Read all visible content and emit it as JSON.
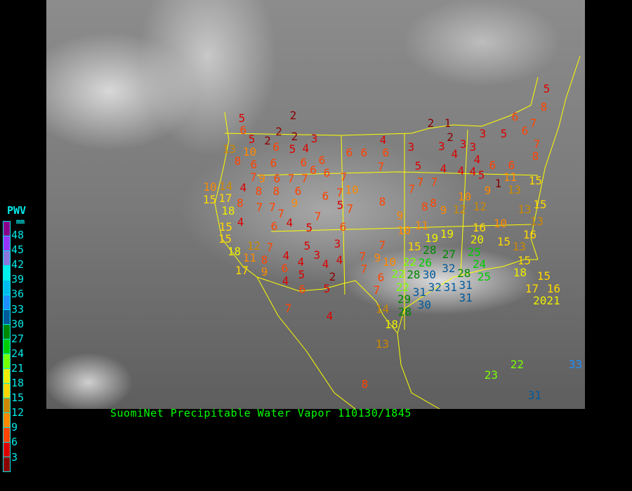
{
  "title": "SuomiNet Precipitable Water Vapor 110130/1845",
  "legend": {
    "title": "PWV",
    "unit": "mm",
    "labels": [
      "48",
      "45",
      "42",
      "39",
      "36",
      "33",
      "30",
      "27",
      "24",
      "21",
      "18",
      "15",
      "12",
      "9",
      "6",
      "3"
    ],
    "colors": [
      "#8b008b",
      "#9933ff",
      "#8877dd",
      "#00eeee",
      "#00bbee",
      "#1e90ff",
      "#005a9a",
      "#008800",
      "#00cc00",
      "#77ff00",
      "#eeee00",
      "#ffd700",
      "#cc8800",
      "#ff8800",
      "#ff4400",
      "#dd0000",
      "#8b0000"
    ]
  },
  "stations": [
    2,
    5,
    6,
    2,
    2,
    3,
    5,
    2,
    6,
    5,
    4,
    13,
    10,
    8,
    6,
    6,
    6,
    6,
    6,
    6,
    4,
    6,
    7,
    7,
    9,
    6,
    7,
    7,
    6,
    6,
    7,
    10,
    14,
    4,
    8,
    8,
    6,
    6,
    7,
    5,
    10,
    15,
    17,
    8,
    18,
    7,
    7,
    7,
    9,
    7,
    7,
    8,
    15,
    4,
    6,
    4,
    5,
    6,
    15,
    18,
    12,
    7,
    5,
    3,
    4,
    8,
    11,
    17,
    6,
    4,
    3,
    4,
    4,
    9,
    4,
    5,
    6,
    5,
    2,
    7,
    7,
    7,
    9,
    10,
    6,
    7,
    7,
    4,
    14,
    18,
    13,
    8,
    3,
    5,
    7,
    7,
    7,
    2,
    1,
    2,
    3,
    3,
    4,
    3,
    4,
    4,
    4,
    4,
    5,
    3,
    5,
    6,
    6,
    6,
    6,
    7,
    5,
    8,
    7,
    8,
    11,
    13,
    15,
    1,
    9,
    10,
    12,
    12,
    8,
    9,
    9,
    10,
    11,
    8,
    13,
    15,
    13,
    19,
    19,
    15,
    16,
    10,
    20,
    15,
    13,
    16,
    15,
    18,
    15,
    16,
    17,
    2021,
    28,
    27,
    22,
    26,
    25,
    24,
    22,
    28,
    30,
    32,
    28,
    25,
    22,
    32,
    31,
    31,
    31,
    29,
    31,
    30,
    28,
    23,
    22,
    33,
    31
  ]
}
